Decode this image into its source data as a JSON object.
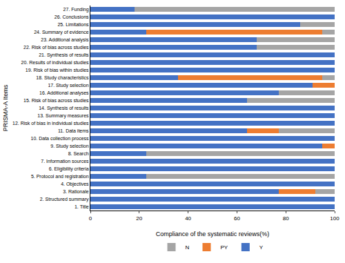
{
  "chart_data": {
    "type": "bar",
    "orientation": "horizontal",
    "stacked": true,
    "xlabel": "Compliance of the systematic reviews(%)",
    "ylabel": "PRISMA-A Items",
    "categories": [
      "1. Title",
      "2. Structured summary",
      "3. Rationale",
      "4. Objectives",
      "5. Protocol and registration",
      "6. Eligibility criteria",
      "7. Information sources",
      "8. Search",
      "9. Study selection",
      "10. Data collection process",
      "11. Data items",
      "12. Risk of bias in individual studies",
      "13. Summary measures",
      "14. Synthesis of results",
      "15. Risk of bias across studies",
      "16. Additional analyses",
      "17. Study selection",
      "18. Study characteristics",
      "19. Risk of bias within studies",
      "20. Results of individual studies",
      "21. Synthesis of results",
      "22. Risk of bias across studies",
      "23. Additional analysis",
      "24. Summary of evidence",
      "25. Limitations",
      "26. Conclusions",
      "27. Funding"
    ],
    "series": [
      {
        "name": "Y",
        "color": "#4472c4",
        "values": [
          100,
          100,
          77,
          100,
          23,
          100,
          100,
          23,
          95,
          100,
          64,
          100,
          100,
          100,
          64,
          77,
          91,
          36,
          100,
          100,
          100,
          68,
          68,
          23,
          86,
          100,
          18
        ]
      },
      {
        "name": "PY",
        "color": "#ed7d31",
        "values": [
          0,
          0,
          15,
          0,
          0,
          0,
          0,
          0,
          5,
          0,
          13,
          0,
          0,
          0,
          0,
          0,
          9,
          59,
          0,
          0,
          0,
          0,
          0,
          72,
          0,
          0,
          0
        ]
      },
      {
        "name": "N",
        "color": "#a5a5a5",
        "values": [
          0,
          0,
          8,
          0,
          77,
          0,
          0,
          77,
          0,
          0,
          23,
          0,
          0,
          0,
          36,
          23,
          0,
          5,
          0,
          0,
          0,
          32,
          32,
          5,
          14,
          0,
          82
        ]
      }
    ],
    "xlim": [
      0,
      100
    ],
    "xticks": [
      0,
      20,
      40,
      60,
      80,
      100
    ],
    "grid": false,
    "legend": "bottom"
  }
}
